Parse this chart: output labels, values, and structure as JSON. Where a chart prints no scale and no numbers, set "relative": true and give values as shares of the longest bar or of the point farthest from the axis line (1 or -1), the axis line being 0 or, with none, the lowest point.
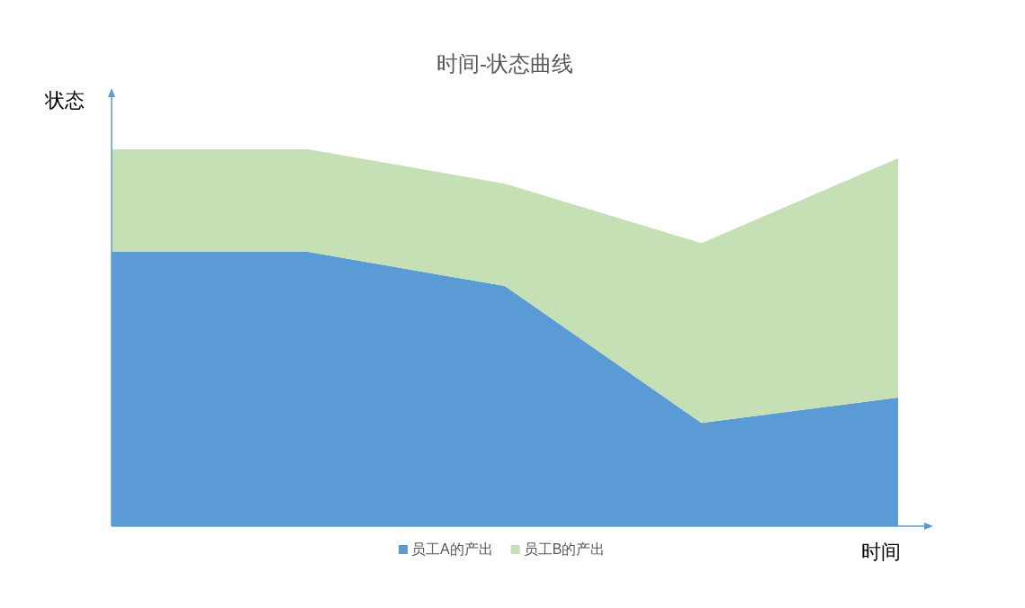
{
  "chart_data": {
    "type": "area",
    "title": "时间-状态曲线",
    "xlabel": "时间",
    "ylabel": "状态",
    "stacked": true,
    "relative": true,
    "legend": "bottom",
    "categories": [
      null,
      null,
      null,
      null,
      null
    ],
    "series": [
      {
        "name": "员工A的产出",
        "color": "#5b9bd5",
        "values": [
          0.728,
          0.728,
          0.637,
          0.274,
          0.341
        ]
      },
      {
        "name": "员工B的产出",
        "color": "#c5e0b4",
        "values": [
          0.272,
          0.272,
          0.272,
          0.477,
          0.635
        ]
      }
    ]
  }
}
